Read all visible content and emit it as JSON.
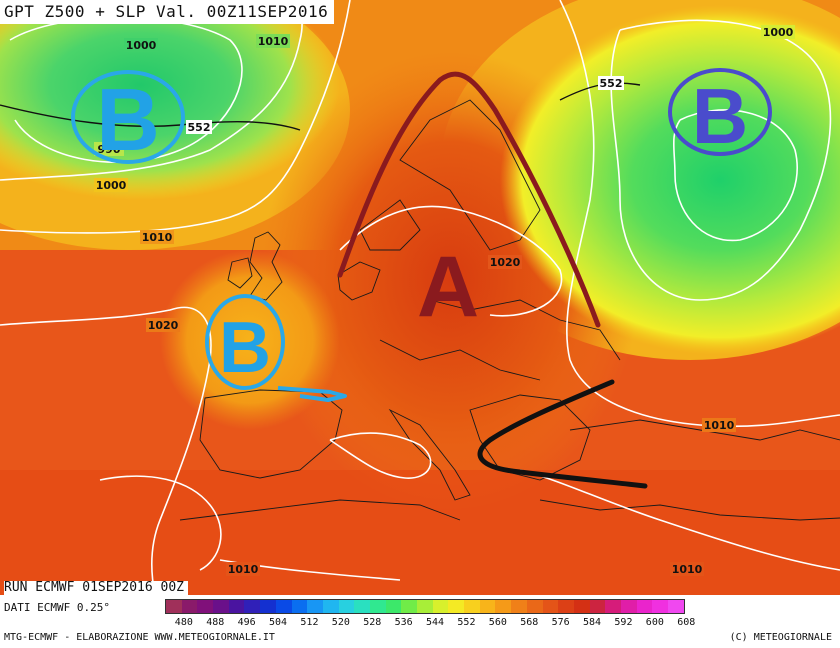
{
  "header": {
    "title": "GPT Z500 + SLP Val. 00Z11SEP2016"
  },
  "map": {
    "isobar_labels": [
      "1000",
      "1010",
      "1000",
      "552",
      "552",
      "990",
      "1000",
      "1010",
      "1020",
      "1020",
      "1010",
      "1010",
      "1010"
    ],
    "markers": {
      "nw": "B",
      "ne": "B",
      "w": "B",
      "high": "A"
    }
  },
  "footer": {
    "run": "RUN ECMWF 01SEP2016 00Z",
    "dati": "DATI ECMWF 0.25°",
    "credit_left": "MTG-ECMWF - ELABORAZIONE WWW.METEOGIORNALE.IT",
    "credit_right": "(C) METEOGIORNALE"
  },
  "colorbar": {
    "ticks": [
      "480",
      "488",
      "496",
      "504",
      "512",
      "520",
      "528",
      "536",
      "544",
      "552",
      "560",
      "568",
      "576",
      "584",
      "592",
      "600",
      "608"
    ],
    "colors": [
      "#a0305a",
      "#8a1a6a",
      "#80107a",
      "#6a108a",
      "#4a14a0",
      "#3020b8",
      "#1430d0",
      "#0a4ae6",
      "#0a6ef0",
      "#1896f4",
      "#20b6f0",
      "#28d0e0",
      "#2ae0c0",
      "#30e890",
      "#3ce86a",
      "#70ec48",
      "#a8ee38",
      "#d8f02c",
      "#f4ea24",
      "#f8d01e",
      "#f8b41a",
      "#f59a18",
      "#f08018",
      "#ea6818",
      "#e45418",
      "#dc4016",
      "#d43014",
      "#cc2440",
      "#d61c7a",
      "#e01ea8",
      "#ea24cc",
      "#f030e0",
      "#f048f0"
    ]
  }
}
